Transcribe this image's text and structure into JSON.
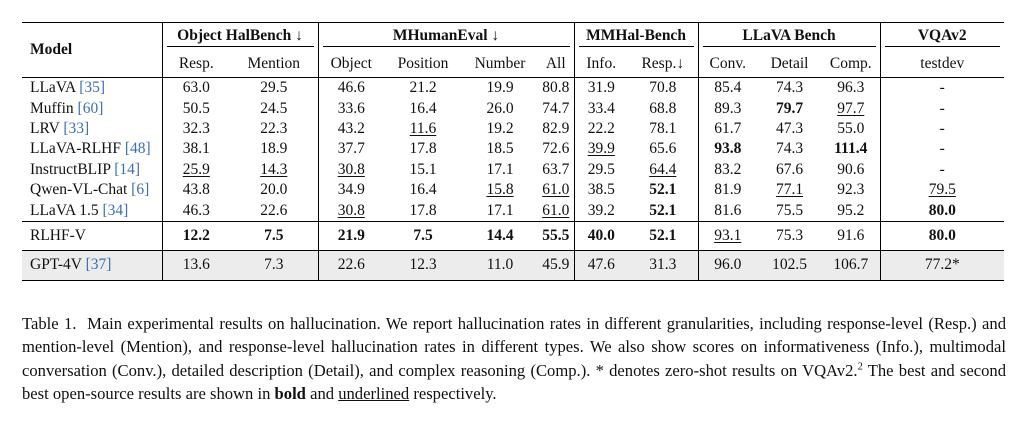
{
  "table": {
    "groups": {
      "model": "Model",
      "object_halbench": "Object HalBench ↓",
      "mhumaneval": "MHumanEval ↓",
      "mmhal": "MMHal-Bench",
      "llava_bench": "LLaVA Bench",
      "vqav2": "VQAv2"
    },
    "subheaders": [
      "Resp.",
      "Mention",
      "Object",
      "Position",
      "Number",
      "All",
      "Info.",
      "Resp.↓",
      "Conv.",
      "Detail",
      "Comp.",
      "testdev"
    ],
    "rows": [
      {
        "name": "LLaVA",
        "ref": "35",
        "cells": [
          {
            "v": "63.0"
          },
          {
            "v": "29.5"
          },
          {
            "v": "46.6"
          },
          {
            "v": "21.2"
          },
          {
            "v": "19.9"
          },
          {
            "v": "80.8"
          },
          {
            "v": "31.9"
          },
          {
            "v": "70.8"
          },
          {
            "v": "85.4"
          },
          {
            "v": "74.3"
          },
          {
            "v": "96.3"
          },
          {
            "v": "-"
          }
        ]
      },
      {
        "name": "Muffin",
        "ref": "60",
        "cells": [
          {
            "v": "50.5"
          },
          {
            "v": "24.5"
          },
          {
            "v": "33.6"
          },
          {
            "v": "16.4"
          },
          {
            "v": "26.0"
          },
          {
            "v": "74.7"
          },
          {
            "v": "33.4"
          },
          {
            "v": "68.8"
          },
          {
            "v": "89.3"
          },
          {
            "v": "79.7",
            "s": "b"
          },
          {
            "v": "97.7",
            "s": "u"
          },
          {
            "v": "-"
          }
        ]
      },
      {
        "name": "LRV",
        "ref": "33",
        "cells": [
          {
            "v": "32.3"
          },
          {
            "v": "22.3"
          },
          {
            "v": "43.2"
          },
          {
            "v": "11.6",
            "s": "u"
          },
          {
            "v": "19.2"
          },
          {
            "v": "82.9"
          },
          {
            "v": "22.2"
          },
          {
            "v": "78.1"
          },
          {
            "v": "61.7"
          },
          {
            "v": "47.3"
          },
          {
            "v": "55.0"
          },
          {
            "v": "-"
          }
        ]
      },
      {
        "name": "LLaVA-RLHF",
        "ref": "48",
        "cells": [
          {
            "v": "38.1"
          },
          {
            "v": "18.9"
          },
          {
            "v": "37.7"
          },
          {
            "v": "17.8"
          },
          {
            "v": "18.5"
          },
          {
            "v": "72.6"
          },
          {
            "v": "39.9",
            "s": "u"
          },
          {
            "v": "65.6"
          },
          {
            "v": "93.8",
            "s": "b"
          },
          {
            "v": "74.3"
          },
          {
            "v": "111.4",
            "s": "b"
          },
          {
            "v": "-"
          }
        ]
      },
      {
        "name": "InstructBLIP",
        "ref": "14",
        "cells": [
          {
            "v": "25.9",
            "s": "u"
          },
          {
            "v": "14.3",
            "s": "u"
          },
          {
            "v": "30.8",
            "s": "u"
          },
          {
            "v": "15.1"
          },
          {
            "v": "17.1"
          },
          {
            "v": "63.7"
          },
          {
            "v": "29.5"
          },
          {
            "v": "64.4",
            "s": "u"
          },
          {
            "v": "83.2"
          },
          {
            "v": "67.6"
          },
          {
            "v": "90.6"
          },
          {
            "v": "-"
          }
        ]
      },
      {
        "name": "Qwen-VL-Chat",
        "ref": "6",
        "cells": [
          {
            "v": "43.8"
          },
          {
            "v": "20.0"
          },
          {
            "v": "34.9"
          },
          {
            "v": "16.4"
          },
          {
            "v": "15.8",
            "s": "u"
          },
          {
            "v": "61.0",
            "s": "u"
          },
          {
            "v": "38.5"
          },
          {
            "v": "52.1",
            "s": "b"
          },
          {
            "v": "81.9"
          },
          {
            "v": "77.1",
            "s": "u"
          },
          {
            "v": "92.3"
          },
          {
            "v": "79.5",
            "s": "u"
          }
        ]
      },
      {
        "name": "LLaVA 1.5",
        "ref": "34",
        "cells": [
          {
            "v": "46.3"
          },
          {
            "v": "22.6"
          },
          {
            "v": "30.8",
            "s": "u"
          },
          {
            "v": "17.8"
          },
          {
            "v": "17.1"
          },
          {
            "v": "61.0",
            "s": "u"
          },
          {
            "v": "39.2"
          },
          {
            "v": "52.1",
            "s": "b"
          },
          {
            "v": "81.6"
          },
          {
            "v": "75.5"
          },
          {
            "v": "95.2"
          },
          {
            "v": "80.0",
            "s": "b"
          }
        ]
      },
      {
        "name": "RLHF-V",
        "ref": "",
        "cells": [
          {
            "v": "12.2",
            "s": "b"
          },
          {
            "v": "7.5",
            "s": "b"
          },
          {
            "v": "21.9",
            "s": "b"
          },
          {
            "v": "7.5",
            "s": "b"
          },
          {
            "v": "14.4",
            "s": "b"
          },
          {
            "v": "55.5",
            "s": "b"
          },
          {
            "v": "40.0",
            "s": "b"
          },
          {
            "v": "52.1",
            "s": "b"
          },
          {
            "v": "93.1",
            "s": "u"
          },
          {
            "v": "75.3"
          },
          {
            "v": "91.6"
          },
          {
            "v": "80.0",
            "s": "b"
          }
        ]
      },
      {
        "name": "GPT-4V",
        "ref": "37",
        "cells": [
          {
            "v": "13.6"
          },
          {
            "v": "7.3"
          },
          {
            "v": "22.6"
          },
          {
            "v": "12.3"
          },
          {
            "v": "11.0"
          },
          {
            "v": "45.9"
          },
          {
            "v": "47.6"
          },
          {
            "v": "31.3"
          },
          {
            "v": "96.0"
          },
          {
            "v": "102.5"
          },
          {
            "v": "106.7"
          },
          {
            "v": "77.2*"
          }
        ]
      }
    ]
  },
  "caption": {
    "label": "Table 1.",
    "text1": "Main experimental results on hallucination. We report hallucination rates in different granularities, including response-level (Resp.) and mention-level (Mention), and response-level hallucination rates in different types. We also show scores on informativeness (Info.), multimodal conversation (Conv.), detailed description (Detail), and complex reasoning (Comp.). * denotes zero-shot results on VQAv2.",
    "footnote_mark": "2",
    "text2": "The best and second best open-source results are shown in",
    "bold_word": "bold",
    "and_word": "and",
    "underlined_word": "underlined",
    "text3": "respectively."
  }
}
